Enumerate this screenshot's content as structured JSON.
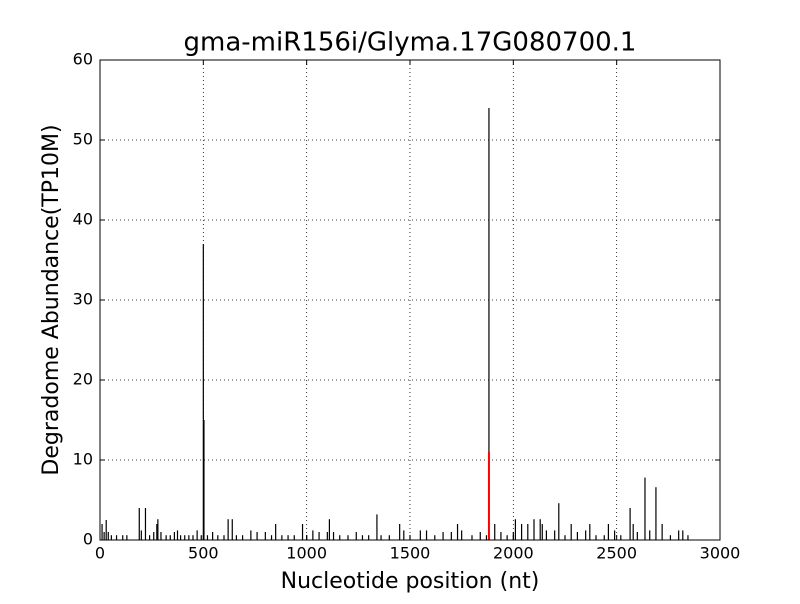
{
  "chart_data": {
    "type": "stem",
    "title": "gma-miR156i/Glyma.17G080700.1",
    "x_label": "Nucleotide position (nt)",
    "y_label": "Degradome Abundance(TP10M)",
    "xlim": [
      0,
      3000
    ],
    "xticks": [
      0,
      500,
      1000,
      1500,
      2000,
      2500,
      3000
    ],
    "ylim": [
      0,
      60
    ],
    "yticks": [
      0,
      10,
      20,
      30,
      40,
      50,
      60
    ],
    "grid": true,
    "series": [
      {
        "color": "#000000",
        "x": [
          10,
          20,
          30,
          40,
          55,
          80,
          110,
          130,
          190,
          200,
          220,
          240,
          260,
          275,
          280,
          295,
          320,
          340,
          360,
          375,
          390,
          410,
          430,
          450,
          470,
          490,
          500,
          503,
          520,
          545,
          570,
          600,
          620,
          640,
          660,
          690,
          730,
          760,
          800,
          830,
          850,
          880,
          910,
          940,
          980,
          1000,
          1030,
          1060,
          1100,
          1110,
          1130,
          1160,
          1200,
          1240,
          1270,
          1300,
          1340,
          1360,
          1400,
          1450,
          1470,
          1500,
          1550,
          1580,
          1620,
          1660,
          1700,
          1730,
          1750,
          1800,
          1840,
          1870,
          1882,
          1910,
          1940,
          1970,
          2000,
          2010,
          2040,
          2070,
          2100,
          2130,
          2140,
          2160,
          2200,
          2220,
          2250,
          2280,
          2310,
          2350,
          2370,
          2400,
          2440,
          2460,
          2490,
          2520,
          2565,
          2580,
          2600,
          2637,
          2660,
          2690,
          2720,
          2760,
          2800,
          2820,
          2845
        ],
        "values": [
          2,
          1,
          2.5,
          1,
          0.6,
          0.6,
          0.6,
          0.6,
          4,
          1.2,
          4,
          0.6,
          1,
          2,
          2.6,
          1,
          0.6,
          0.6,
          1,
          1.2,
          0.6,
          0.6,
          0.6,
          0.6,
          1.2,
          0.6,
          37,
          15,
          0.6,
          1,
          0.6,
          0.6,
          2.6,
          2.6,
          0.6,
          0.6,
          1.2,
          1,
          1,
          0.6,
          2,
          0.6,
          0.6,
          0.6,
          2,
          0.6,
          1.2,
          1,
          1,
          2.6,
          1,
          0.6,
          0.6,
          1,
          0.6,
          0.6,
          3.2,
          0.6,
          0.6,
          2,
          1.2,
          0.6,
          1.2,
          1.2,
          0.6,
          1,
          1,
          2,
          1.2,
          0.6,
          1,
          0.6,
          54,
          2,
          1,
          0.6,
          1,
          2.6,
          2,
          2,
          2.6,
          2.6,
          2,
          1.2,
          1.2,
          4.6,
          0.6,
          2,
          1,
          1.2,
          2,
          0.6,
          0.6,
          2,
          1.2,
          0.6,
          4,
          2,
          1,
          7.8,
          1.2,
          6.6,
          2,
          0.6,
          1.2,
          1.2,
          0.6
        ]
      },
      {
        "color": "#ff0000",
        "x": [
          1882
        ],
        "values": [
          11
        ]
      }
    ]
  }
}
